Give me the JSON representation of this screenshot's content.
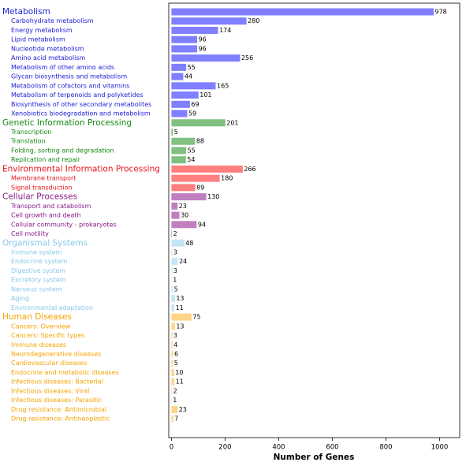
{
  "chart_data": {
    "type": "bar",
    "orientation": "horizontal",
    "xlabel": "Number of Genes",
    "xlim": [
      -10,
      1075
    ],
    "xticks": [
      0,
      200,
      400,
      600,
      800,
      1000
    ],
    "groups": [
      {
        "name": "Metabolism",
        "value": 978,
        "color": "#7f7fff",
        "label_color": "#1c1cd6",
        "categories": [
          "Carbohydrate metabolism",
          "Energy metabolism",
          "Lipid metabolism",
          "Nucleotide metabolism",
          "Amino acid metabolism",
          "Metabolism of other amino acids",
          "Glycan biosynthesis and metabolism",
          "Metabolism of cofactors and vitamins",
          "Metabolism of terpenoids and polyketides",
          "Biosynthesis of other secondary metabolites",
          "Xenobiotics biodegradation and metabolism"
        ],
        "values": [
          280,
          174,
          96,
          96,
          256,
          55,
          44,
          165,
          101,
          69,
          59
        ]
      },
      {
        "name": "Genetic Information Processing",
        "value": 201,
        "color": "#80c080",
        "label_color": "#138a13",
        "categories": [
          "Transcription",
          "Translation",
          "Folding, sorting and degradation",
          "Replication and repair"
        ],
        "values": [
          5,
          88,
          55,
          54
        ]
      },
      {
        "name": "Environmental Information Processing",
        "value": 266,
        "color": "#ff7f7f",
        "label_color": "#e8141c",
        "categories": [
          "Membrane transport",
          "Signal transduction"
        ],
        "values": [
          180,
          89
        ]
      },
      {
        "name": "Cellular Processes",
        "value": 130,
        "color": "#c080c0",
        "label_color": "#8a1a8a",
        "categories": [
          "Transport and catabolism",
          "Cell growth and death",
          "Cellular community - prokaryotes",
          "Cell motility"
        ],
        "values": [
          23,
          30,
          94,
          2
        ]
      },
      {
        "name": "Organismal Systems",
        "value": 48,
        "color": "#c5e5f5",
        "label_color": "#87c8e8",
        "categories": [
          "Immune system",
          "Endocrine system",
          "Digestive system",
          "Excretory system",
          "Nervous system",
          "Aging",
          "Environmental adaptation"
        ],
        "values": [
          3,
          24,
          3,
          1,
          5,
          13,
          11
        ]
      },
      {
        "name": "Human Diseases",
        "value": 75,
        "color": "#ffd48a",
        "label_color": "#f5a300",
        "categories": [
          "Cancers: Overview",
          "Cancers: Specific types",
          "Immune diseases",
          "Neurodegenerative diseases",
          "Cardiovascular diseases",
          "Endocrine and metabolic diseases",
          "Infectious diseases: Bacterial",
          "Infectious diseases: Viral",
          "Infectious diseases: Parasitic",
          "Drug resistance: Antimicrobial",
          "Drug resistance: Antineoplastic"
        ],
        "values": [
          13,
          3,
          4,
          6,
          5,
          10,
          11,
          2,
          1,
          23,
          7
        ]
      }
    ]
  }
}
